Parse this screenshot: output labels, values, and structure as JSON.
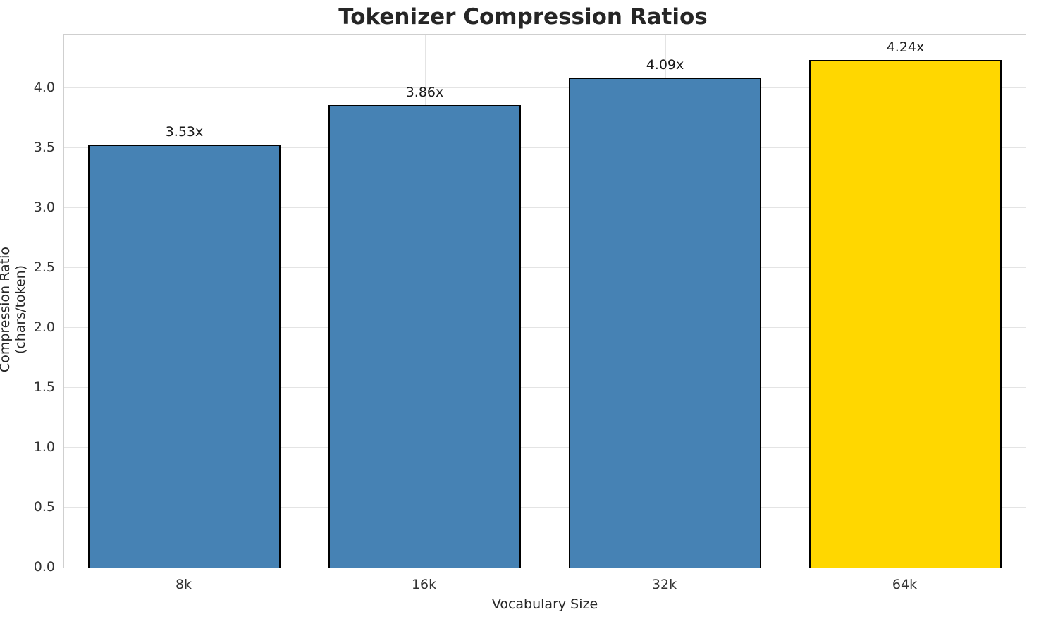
{
  "chart_data": {
    "type": "bar",
    "title": "Tokenizer Compression Ratios",
    "xlabel": "Vocabulary Size",
    "ylabel": "Compression Ratio (chars/token)",
    "categories": [
      "8k",
      "16k",
      "32k",
      "64k"
    ],
    "values": [
      3.53,
      3.86,
      4.09,
      4.24
    ],
    "value_labels": [
      "3.53x",
      "3.86x",
      "4.09x",
      "4.24x"
    ],
    "bar_colors": [
      "#4682b4",
      "#4682b4",
      "#4682b4",
      "#ffd700"
    ],
    "bar_edge_color": "#000000",
    "ylim": [
      0,
      4.45
    ],
    "yticks": [
      0.0,
      0.5,
      1.0,
      1.5,
      2.0,
      2.5,
      3.0,
      3.5,
      4.0
    ],
    "grid": true,
    "legend": "none"
  }
}
